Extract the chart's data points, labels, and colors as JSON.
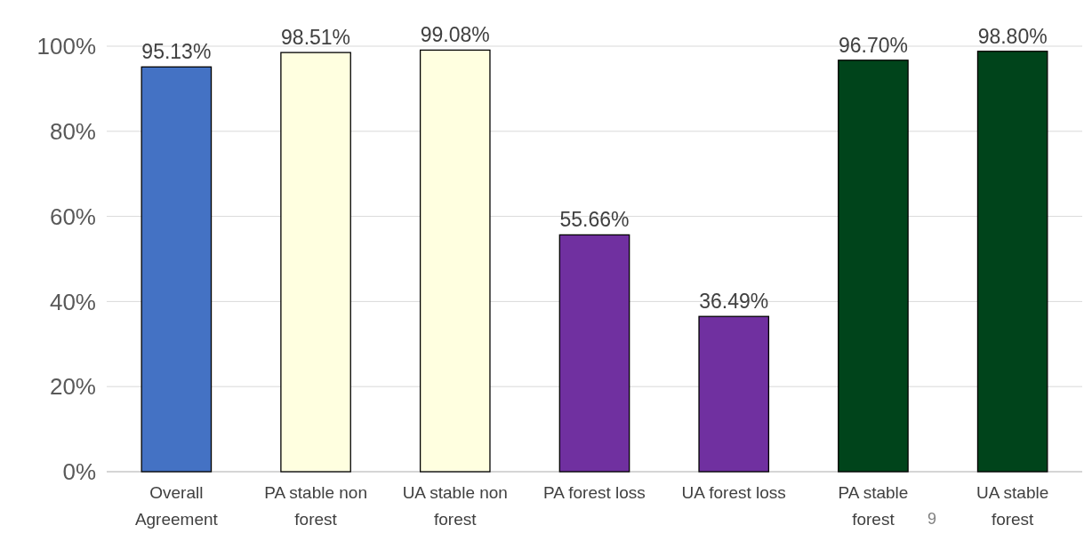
{
  "chart_data": {
    "type": "bar",
    "categories": [
      "Overall Agreement",
      "PA stable non forest",
      "UA stable non forest",
      "PA forest loss",
      "UA forest loss",
      "PA stable forest",
      "UA stable forest"
    ],
    "values": [
      95.13,
      98.51,
      99.08,
      55.66,
      36.49,
      96.7,
      98.8
    ],
    "value_labels": [
      "95.13%",
      "98.51%",
      "99.08%",
      "55.66%",
      "36.49%",
      "96.70%",
      "98.80%"
    ],
    "colors": [
      "#4472c4",
      "#ffffe0",
      "#ffffe0",
      "#7030a0",
      "#7030a0",
      "#00441b",
      "#00441b"
    ],
    "ylim": [
      0,
      100
    ],
    "yticks": [
      {
        "value": 0,
        "label": "0%"
      },
      {
        "value": 20,
        "label": "20%"
      },
      {
        "value": 40,
        "label": "40%"
      },
      {
        "value": 60,
        "label": "60%"
      },
      {
        "value": 80,
        "label": "80%"
      },
      {
        "value": 100,
        "label": "100%"
      }
    ],
    "grid": "y",
    "annotations": [
      "9"
    ]
  }
}
